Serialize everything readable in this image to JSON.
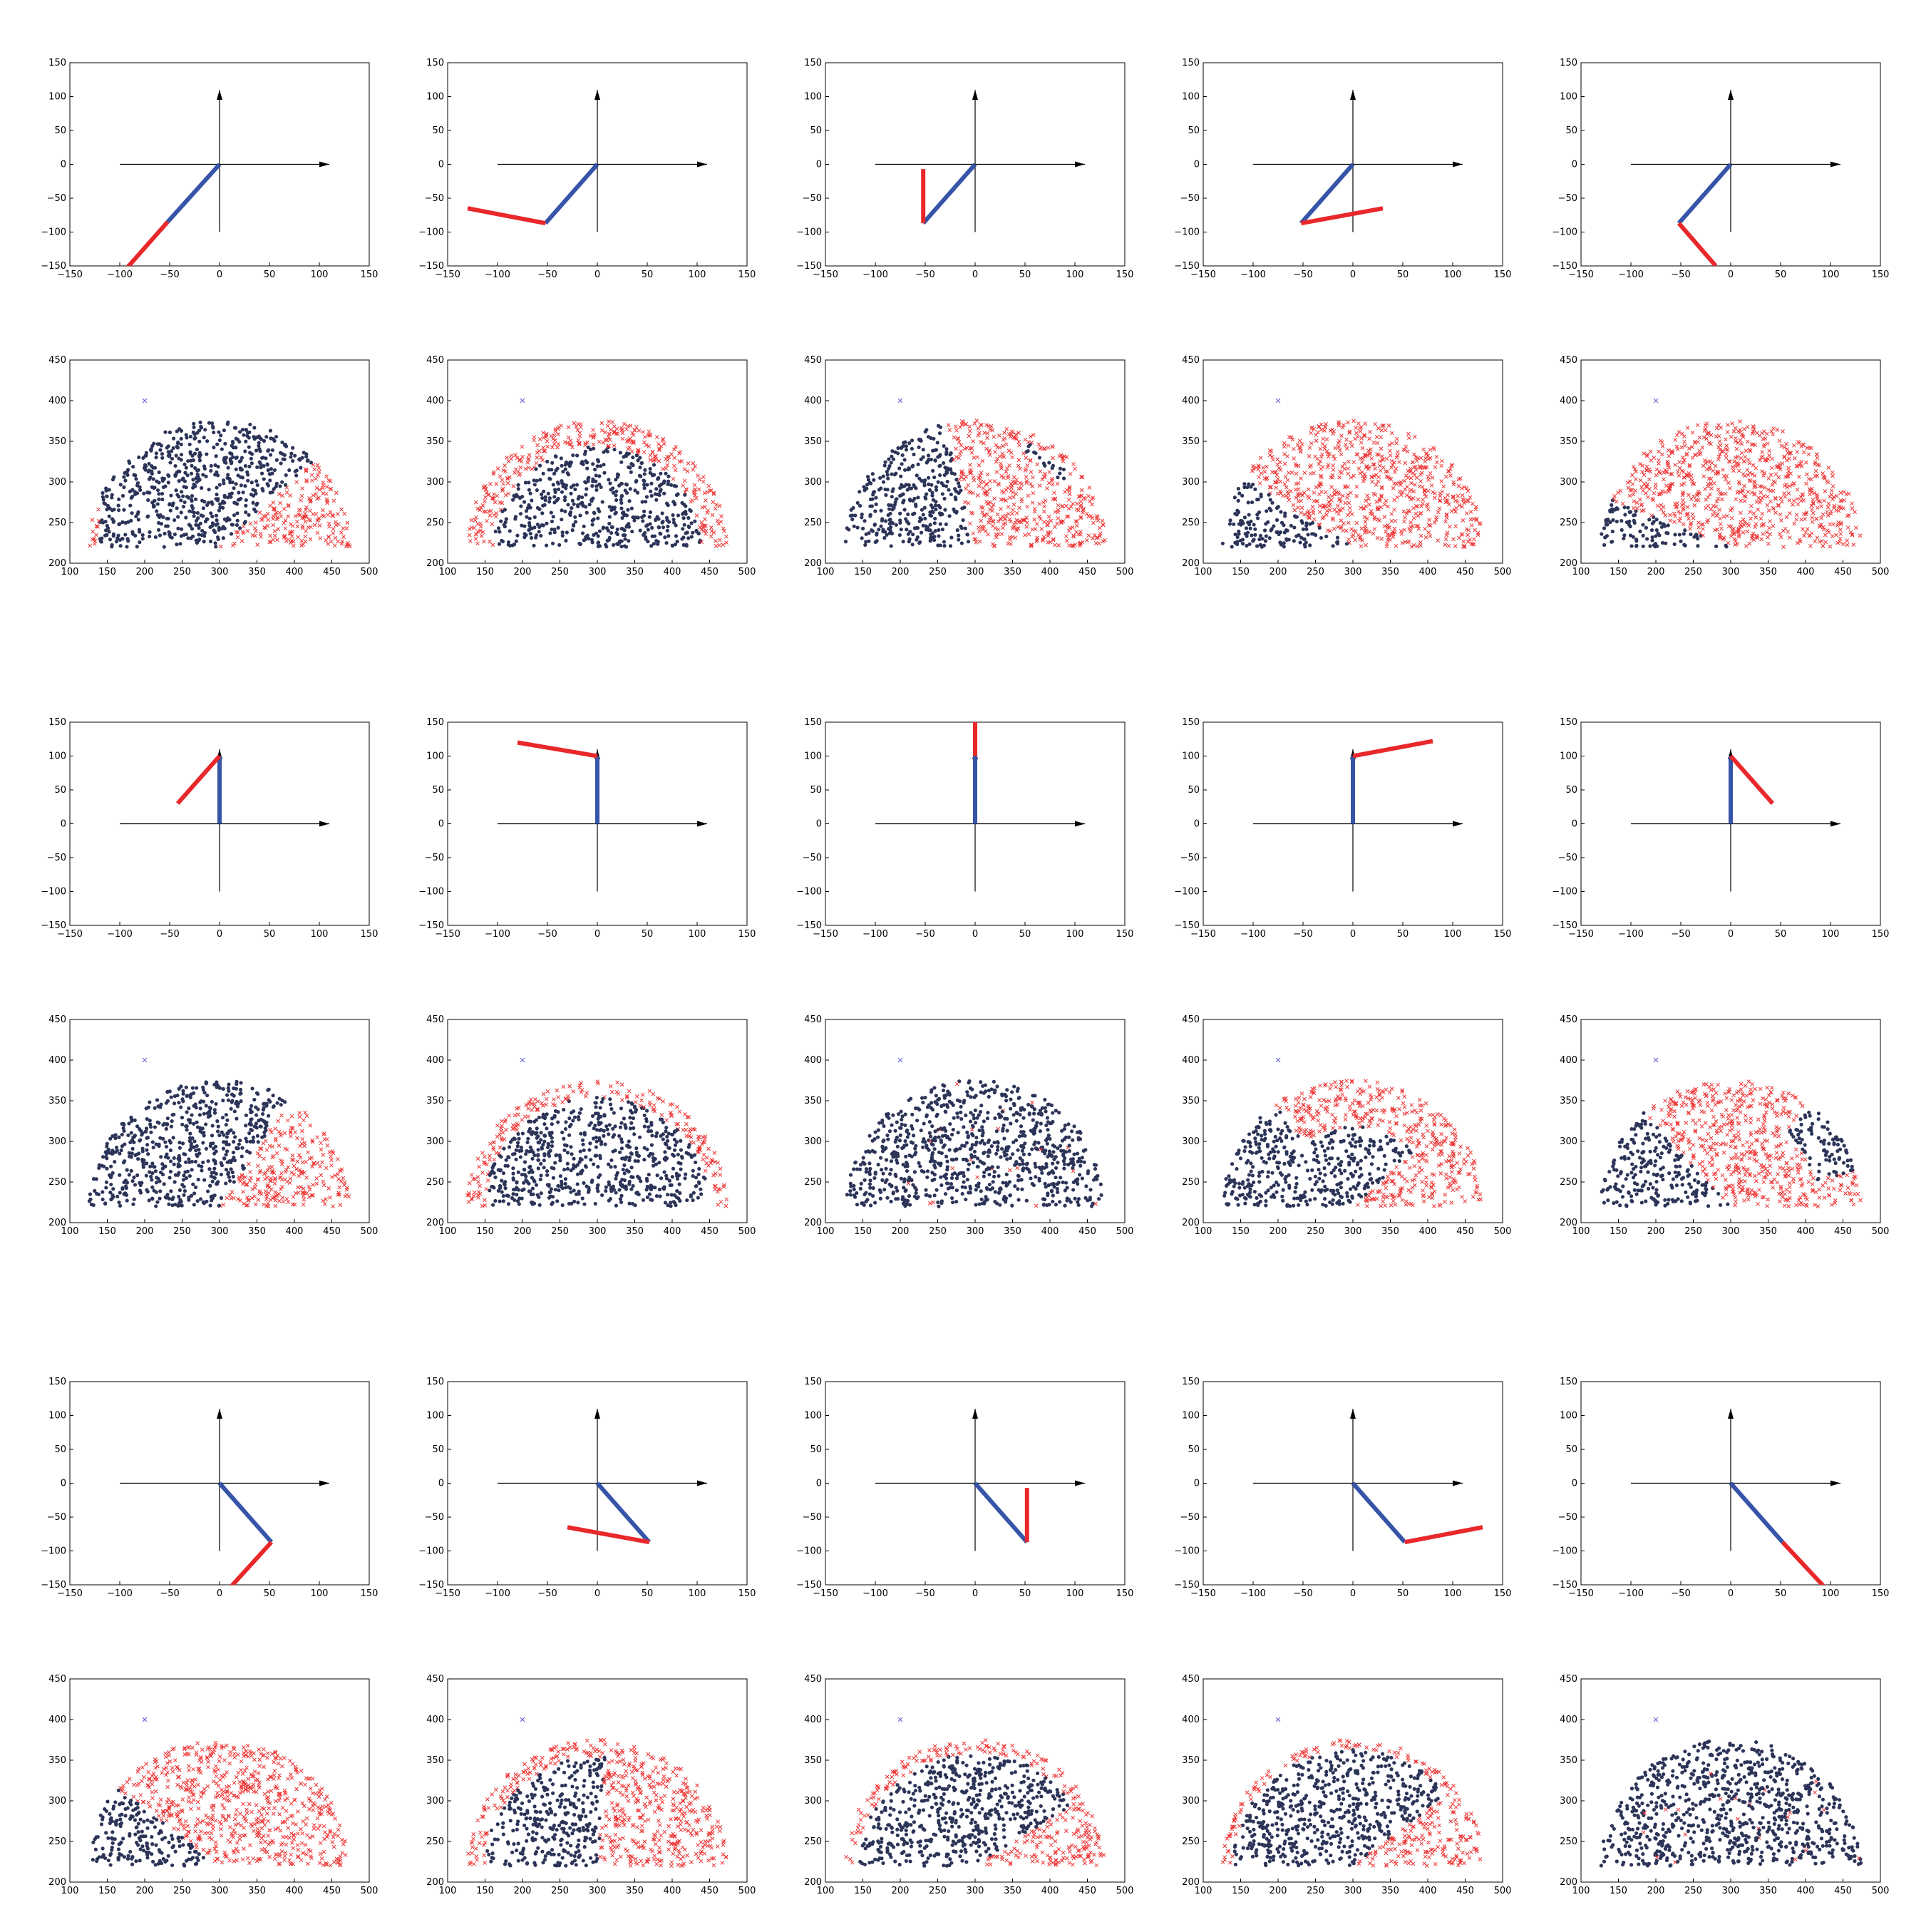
{
  "arm_panel_defaults": {
    "type": "line",
    "xlim": [
      -150,
      150
    ],
    "ylim": [
      -150,
      150
    ],
    "xticks": [
      -150,
      -100,
      -50,
      0,
      50,
      100,
      150
    ],
    "yticks": [
      -150,
      -100,
      -50,
      0,
      50,
      100,
      150
    ],
    "axes_arrows": {
      "x": [
        -100,
        110
      ],
      "y": [
        -100,
        110
      ]
    },
    "link1_color": "#3654a8",
    "link2_color": "#e8282b"
  },
  "scatter_panel_defaults": {
    "type": "scatter",
    "xlim": [
      100,
      500
    ],
    "ylim": [
      200,
      450
    ],
    "xticks": [
      100,
      150,
      200,
      250,
      300,
      350,
      400,
      450,
      500
    ],
    "yticks": [
      200,
      250,
      300,
      350,
      400,
      450
    ],
    "target": {
      "x": 200,
      "y": 400,
      "color": "#6a6ad8"
    },
    "workspace": {
      "cx": 300,
      "cy": 220,
      "r": 175
    },
    "dot_color": "#2c3458",
    "cross_color": "#ee3333"
  },
  "chart_data": [
    {
      "type": "line",
      "row": 1,
      "col": 1,
      "link1": [
        [
          0,
          0
        ],
        [
          -52,
          -85
        ]
      ],
      "link2": [
        [
          -52,
          -85
        ],
        [
          -100,
          -165
        ]
      ]
    },
    {
      "type": "line",
      "row": 1,
      "col": 2,
      "link1": [
        [
          0,
          0
        ],
        [
          -52,
          -87
        ]
      ],
      "link2": [
        [
          -52,
          -87
        ],
        [
          -130,
          -65
        ]
      ]
    },
    {
      "type": "line",
      "row": 1,
      "col": 3,
      "link1": [
        [
          0,
          0
        ],
        [
          -52,
          -87
        ]
      ],
      "link2": [
        [
          -52,
          -87
        ],
        [
          -52,
          -7
        ]
      ]
    },
    {
      "type": "line",
      "row": 1,
      "col": 4,
      "link1": [
        [
          0,
          0
        ],
        [
          -52,
          -87
        ]
      ],
      "link2": [
        [
          -52,
          -87
        ],
        [
          30,
          -65
        ]
      ]
    },
    {
      "type": "line",
      "row": 1,
      "col": 5,
      "link1": [
        [
          0,
          0
        ],
        [
          -52,
          -87
        ]
      ],
      "link2": [
        [
          -52,
          -87
        ],
        [
          -15,
          -150
        ]
      ]
    },
    {
      "type": "scatter",
      "row": 2,
      "col": 1,
      "crosses": {
        "angle_above": [
          0,
          40
        ],
        "center_x_below": 0
      }
    },
    {
      "type": "scatter",
      "row": 2,
      "col": 2,
      "crosses": {
        "outer_band_r": 138
      }
    },
    {
      "type": "scatter",
      "row": 2,
      "col": 3,
      "crosses": {
        "angle_above": [
          0,
          105
        ],
        "except_band": [
          62,
          32,
          145,
          160
        ]
      }
    },
    {
      "type": "scatter",
      "row": 2,
      "col": 4,
      "crosses": {
        "angle_above": [
          0,
          150
        ]
      }
    },
    {
      "type": "scatter",
      "row": 2,
      "col": 5,
      "crosses": {
        "angle_above": [
          0,
          160
        ]
      }
    },
    {
      "type": "line",
      "row": 3,
      "col": 1,
      "link1": [
        [
          0,
          0
        ],
        [
          0,
          100
        ]
      ],
      "link2": [
        [
          0,
          100
        ],
        [
          -42,
          30
        ]
      ]
    },
    {
      "type": "line",
      "row": 3,
      "col": 2,
      "link1": [
        [
          0,
          0
        ],
        [
          0,
          100
        ]
      ],
      "link2": [
        [
          0,
          100
        ],
        [
          -80,
          120
        ]
      ]
    },
    {
      "type": "line",
      "row": 3,
      "col": 3,
      "link1": [
        [
          0,
          0
        ],
        [
          0,
          100
        ]
      ],
      "link2": [
        [
          0,
          100
        ],
        [
          0,
          150
        ]
      ]
    },
    {
      "type": "line",
      "row": 3,
      "col": 4,
      "link1": [
        [
          0,
          0
        ],
        [
          0,
          100
        ]
      ],
      "link2": [
        [
          0,
          100
        ],
        [
          80,
          122
        ]
      ]
    },
    {
      "type": "line",
      "row": 3,
      "col": 5,
      "link1": [
        [
          0,
          0
        ],
        [
          0,
          100
        ]
      ],
      "link2": [
        [
          0,
          100
        ],
        [
          42,
          30
        ]
      ]
    },
    {
      "type": "scatter",
      "row": 4,
      "col": 1,
      "crosses": {
        "angle_below": [
          0,
          55
        ]
      }
    },
    {
      "type": "scatter",
      "row": 4,
      "col": 2,
      "crosses": {
        "outer_band_r": 150
      }
    },
    {
      "type": "scatter",
      "row": 4,
      "col": 3,
      "crosses": {
        "sparse": 0.02
      }
    },
    {
      "type": "scatter",
      "row": 4,
      "col": 4,
      "crosses": {
        "angle_above": [
          0,
          130
        ],
        "inner_exclude_r": 110
      }
    },
    {
      "type": "scatter",
      "row": 4,
      "col": 5,
      "crosses": {
        "angle_above": [
          0,
          135
        ],
        "except_band": [
          15,
          50,
          120,
          175
        ]
      }
    },
    {
      "type": "line",
      "row": 5,
      "col": 1,
      "link1": [
        [
          0,
          0
        ],
        [
          52,
          -87
        ]
      ],
      "link2": [
        [
          52,
          -87
        ],
        [
          10,
          -155
        ]
      ]
    },
    {
      "type": "line",
      "row": 5,
      "col": 2,
      "link1": [
        [
          0,
          0
        ],
        [
          52,
          -87
        ]
      ],
      "link2": [
        [
          52,
          -87
        ],
        [
          -30,
          -65
        ]
      ]
    },
    {
      "type": "line",
      "row": 5,
      "col": 3,
      "link1": [
        [
          0,
          0
        ],
        [
          52,
          -87
        ]
      ],
      "link2": [
        [
          52,
          -87
        ],
        [
          52,
          -7
        ]
      ]
    },
    {
      "type": "line",
      "row": 5,
      "col": 4,
      "link1": [
        [
          0,
          0
        ],
        [
          52,
          -87
        ]
      ],
      "link2": [
        [
          52,
          -87
        ],
        [
          130,
          -65
        ]
      ]
    },
    {
      "type": "line",
      "row": 5,
      "col": 5,
      "link1": [
        [
          0,
          0
        ],
        [
          52,
          -87
        ]
      ],
      "link2": [
        [
          52,
          -87
        ],
        [
          95,
          -155
        ]
      ]
    },
    {
      "type": "scatter",
      "row": 6,
      "col": 1,
      "crosses": {
        "angle_below": [
          0,
          145
        ]
      }
    },
    {
      "type": "scatter",
      "row": 6,
      "col": 2,
      "crosses": {
        "angle_below": [
          0,
          85
        ],
        "outer_band_r": 150
      }
    },
    {
      "type": "scatter",
      "row": 6,
      "col": 3,
      "crosses": {
        "angle_below": [
          0,
          30
        ],
        "outer_band_r": 155
      }
    },
    {
      "type": "scatter",
      "row": 6,
      "col": 4,
      "crosses": {
        "angle_below": [
          0,
          35
        ],
        "outer_band_r": 160
      }
    },
    {
      "type": "scatter",
      "row": 6,
      "col": 5,
      "crosses": {
        "sparse": 0.03
      }
    }
  ]
}
